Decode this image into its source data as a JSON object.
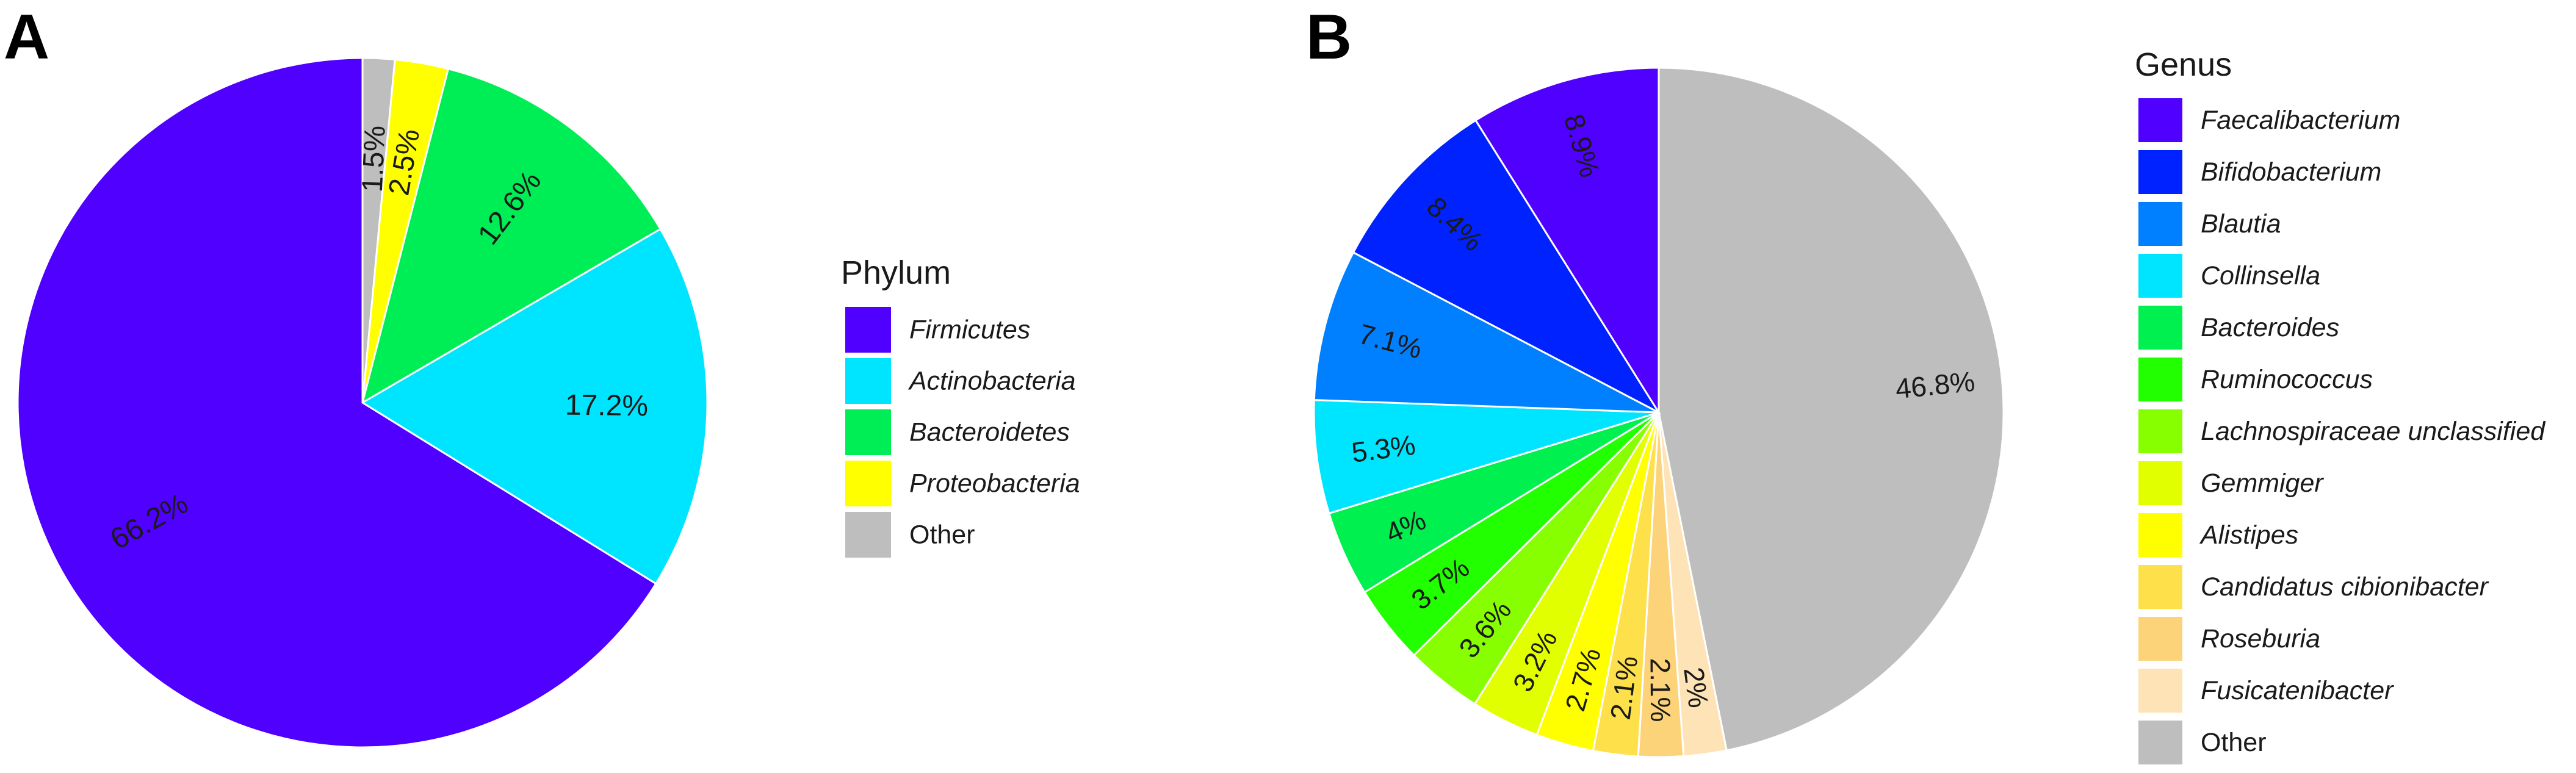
{
  "panels": {
    "a": {
      "label": "A"
    },
    "b": {
      "label": "B"
    }
  },
  "chart_data": [
    {
      "type": "pie",
      "panel": "A",
      "legend_title": "Phylum",
      "legend_position": "right",
      "direction": "clockwise from 12 o'clock",
      "slices": [
        {
          "name": "Other",
          "value": 1.5,
          "label": "1.5%",
          "color": "#bebebe",
          "italic": false
        },
        {
          "name": "Proteobacteria",
          "value": 2.5,
          "label": "2.5%",
          "color": "#ffff00",
          "italic": true
        },
        {
          "name": "Bacteroidetes",
          "value": 12.6,
          "label": "12.6%",
          "color": "#00ee55",
          "italic": true
        },
        {
          "name": "Actinobacteria",
          "value": 17.2,
          "label": "17.2%",
          "color": "#00e5ff",
          "italic": true
        },
        {
          "name": "Firmicutes",
          "value": 66.2,
          "label": "66.2%",
          "color": "#5000ff",
          "italic": true
        }
      ],
      "legend_order": [
        "Firmicutes",
        "Actinobacteria",
        "Bacteroidetes",
        "Proteobacteria",
        "Other"
      ]
    },
    {
      "type": "pie",
      "panel": "B",
      "legend_title": "Genus",
      "legend_position": "right",
      "direction": "clockwise from 12 o'clock",
      "slices": [
        {
          "name": "Other",
          "value": 46.8,
          "label": "46.8%",
          "color": "#bebebe",
          "italic": false
        },
        {
          "name": "Fusicatenibacter",
          "value": 2.0,
          "label": "2%",
          "color": "#fde3b5",
          "italic": true
        },
        {
          "name": "Roseburia",
          "value": 2.1,
          "label": "2.1%",
          "color": "#fdd37a",
          "italic": true
        },
        {
          "name": "Candidatus cibionibacter",
          "value": 2.1,
          "label": "2.1%",
          "color": "#fde04a",
          "italic": true
        },
        {
          "name": "Alistipes",
          "value": 2.7,
          "label": "2.7%",
          "color": "#ffff00",
          "italic": true
        },
        {
          "name": "Gemmiger",
          "value": 3.2,
          "label": "3.2%",
          "color": "#e2ff00",
          "italic": true
        },
        {
          "name": "Lachnospiraceae unclassified",
          "value": 3.6,
          "label": "3.6%",
          "color": "#88ff00",
          "italic": true
        },
        {
          "name": "Ruminococcus",
          "value": 3.7,
          "label": "3.7%",
          "color": "#22ff00",
          "italic": true
        },
        {
          "name": "Bacteroides",
          "value": 4.0,
          "label": "4%",
          "color": "#00f050",
          "italic": true
        },
        {
          "name": "Collinsella",
          "value": 5.3,
          "label": "5.3%",
          "color": "#00e5ff",
          "italic": true
        },
        {
          "name": "Blautia",
          "value": 7.1,
          "label": "7.1%",
          "color": "#0080ff",
          "italic": true
        },
        {
          "name": "Bifidobacterium",
          "value": 8.4,
          "label": "8.4%",
          "color": "#0022ff",
          "italic": true
        },
        {
          "name": "Faecalibacterium",
          "value": 8.9,
          "label": "8.9%",
          "color": "#5000ff",
          "italic": true
        }
      ],
      "legend_order": [
        "Faecalibacterium",
        "Bifidobacterium",
        "Blautia",
        "Collinsella",
        "Bacteroides",
        "Ruminococcus",
        "Lachnospiraceae unclassified",
        "Gemmiger",
        "Alistipes",
        "Candidatus cibionibacter",
        "Roseburia",
        "Fusicatenibacter",
        "Other"
      ]
    }
  ]
}
